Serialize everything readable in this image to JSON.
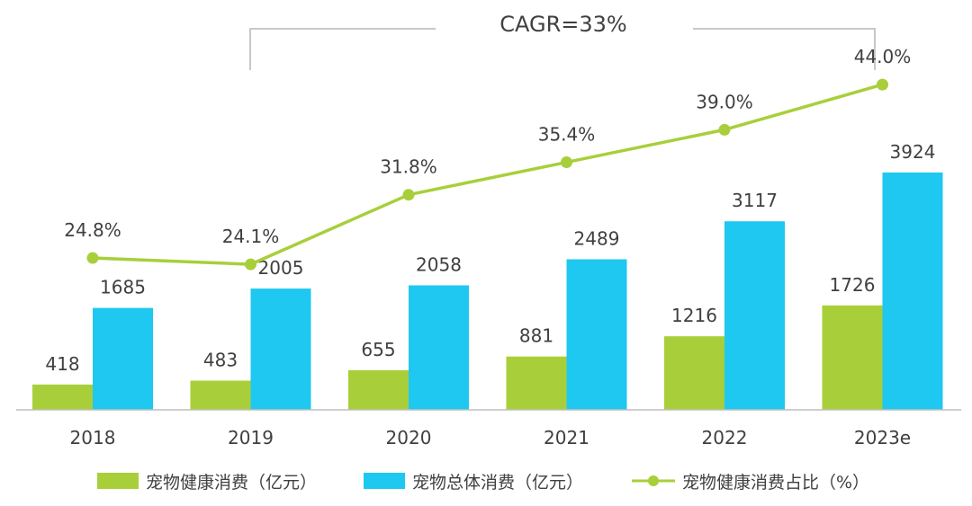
{
  "chart_data": {
    "type": "bar",
    "categories": [
      "2018",
      "2019",
      "2020",
      "2021",
      "2022",
      "2023e"
    ],
    "series": [
      {
        "name": "宠物健康消费（亿元）",
        "type": "bar",
        "color": "#a8cf3a",
        "values": [
          418,
          483,
          655,
          881,
          1216,
          1726
        ]
      },
      {
        "name": "宠物总体消费（亿元）",
        "type": "bar",
        "color": "#1ec8f0",
        "values": [
          1685,
          2005,
          2058,
          2489,
          3117,
          3924
        ]
      },
      {
        "name": "宠物健康消费占比（%）",
        "type": "line",
        "color": "#a8cf3a",
        "values": [
          24.8,
          24.1,
          31.8,
          35.4,
          39.0,
          44.0
        ],
        "labels": [
          "24.8%",
          "24.1%",
          "31.8%",
          "35.4%",
          "39.0%",
          "44.0%"
        ]
      }
    ],
    "annotation": "CAGR=33%",
    "ylim_bar": [
      0,
      4000
    ],
    "ylim_line": [
      0,
      50
    ],
    "legend_position": "bottom"
  }
}
